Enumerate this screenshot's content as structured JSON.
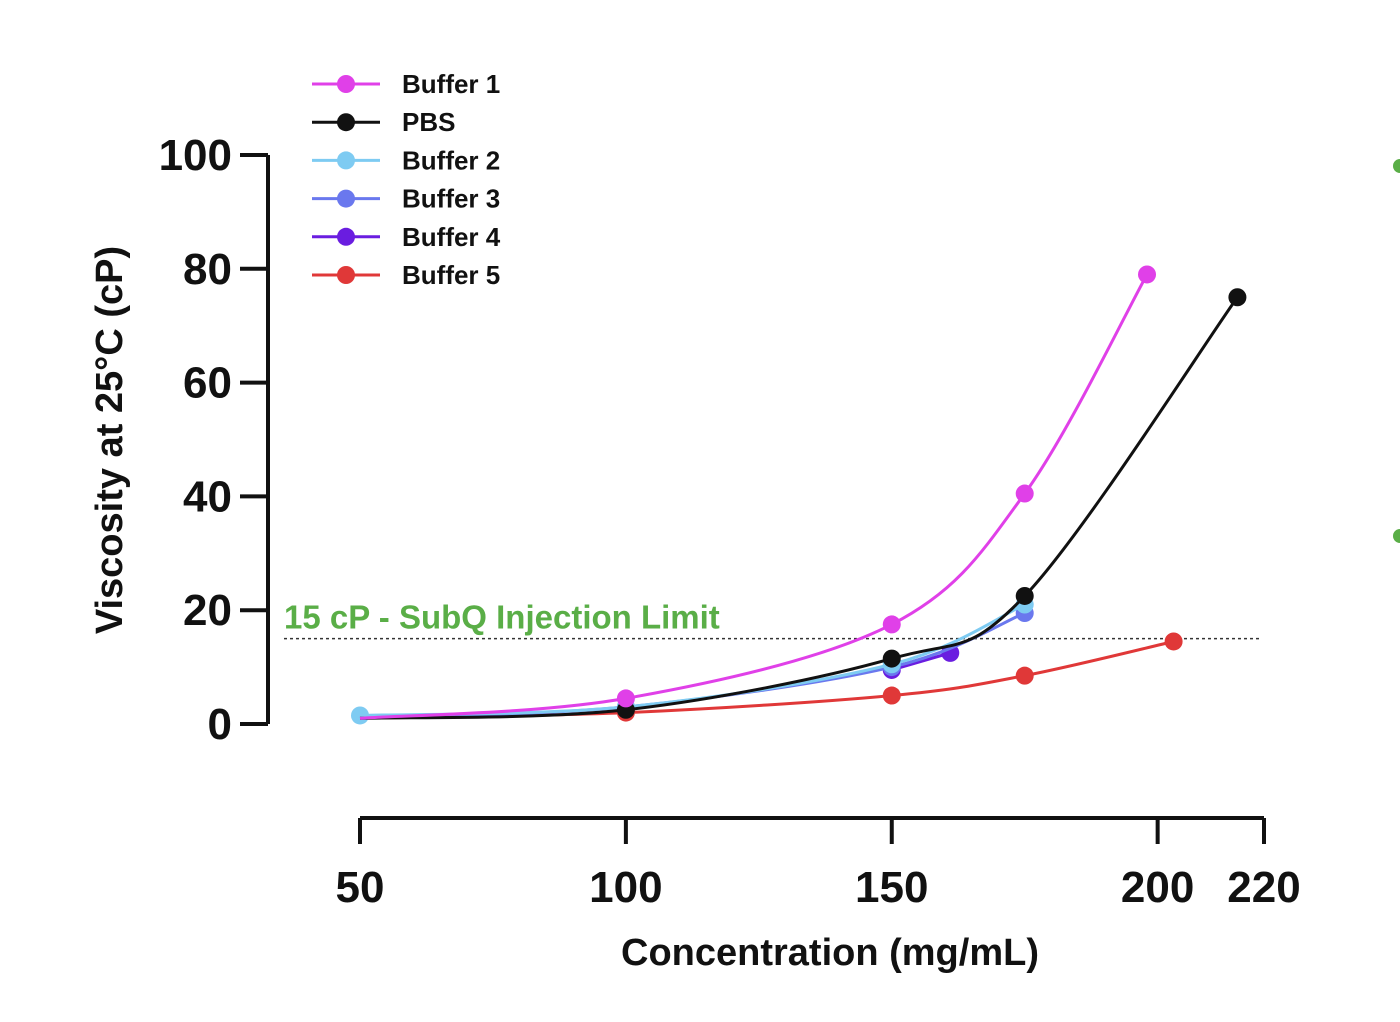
{
  "chart_data": {
    "type": "line",
    "xlabel": "Concentration (mg/mL)",
    "ylabel": "Viscosity at 25°C (cP)",
    "xlim": [
      50,
      220
    ],
    "ylim": [
      0,
      100
    ],
    "x_ticks": [
      50,
      100,
      150,
      200,
      220
    ],
    "y_ticks": [
      0,
      20,
      40,
      60,
      80,
      100
    ],
    "grid": false,
    "legend_position": "top-left",
    "reference_line": {
      "y": 15,
      "label": "15 cP - SubQ Injection Limit",
      "color": "#5aae47",
      "style": "dotted"
    },
    "series": [
      {
        "name": "Buffer 1",
        "color": "#e040e8",
        "x": [
          100,
          150,
          175,
          198
        ],
        "y": [
          4.5,
          17.5,
          40.5,
          79
        ]
      },
      {
        "name": "PBS",
        "color": "#111111",
        "x": [
          100,
          150,
          175,
          215
        ],
        "y": [
          2.5,
          11.5,
          22.5,
          75
        ]
      },
      {
        "name": "Buffer 2",
        "color": "#7ecbf2",
        "x": [
          50,
          100,
          150,
          175
        ],
        "y": [
          1.5,
          3,
          10.5,
          21
        ]
      },
      {
        "name": "Buffer 3",
        "color": "#6a78ee",
        "x": [
          100,
          150,
          175
        ],
        "y": [
          3,
          10,
          19.5
        ]
      },
      {
        "name": "Buffer 4",
        "color": "#6a1de0",
        "x": [
          150,
          161
        ],
        "y": [
          9.5,
          12.5
        ]
      },
      {
        "name": "Buffer 5",
        "color": "#e03838",
        "x": [
          100,
          150,
          175,
          203
        ],
        "y": [
          2,
          5,
          8.5,
          14.5
        ]
      }
    ]
  }
}
